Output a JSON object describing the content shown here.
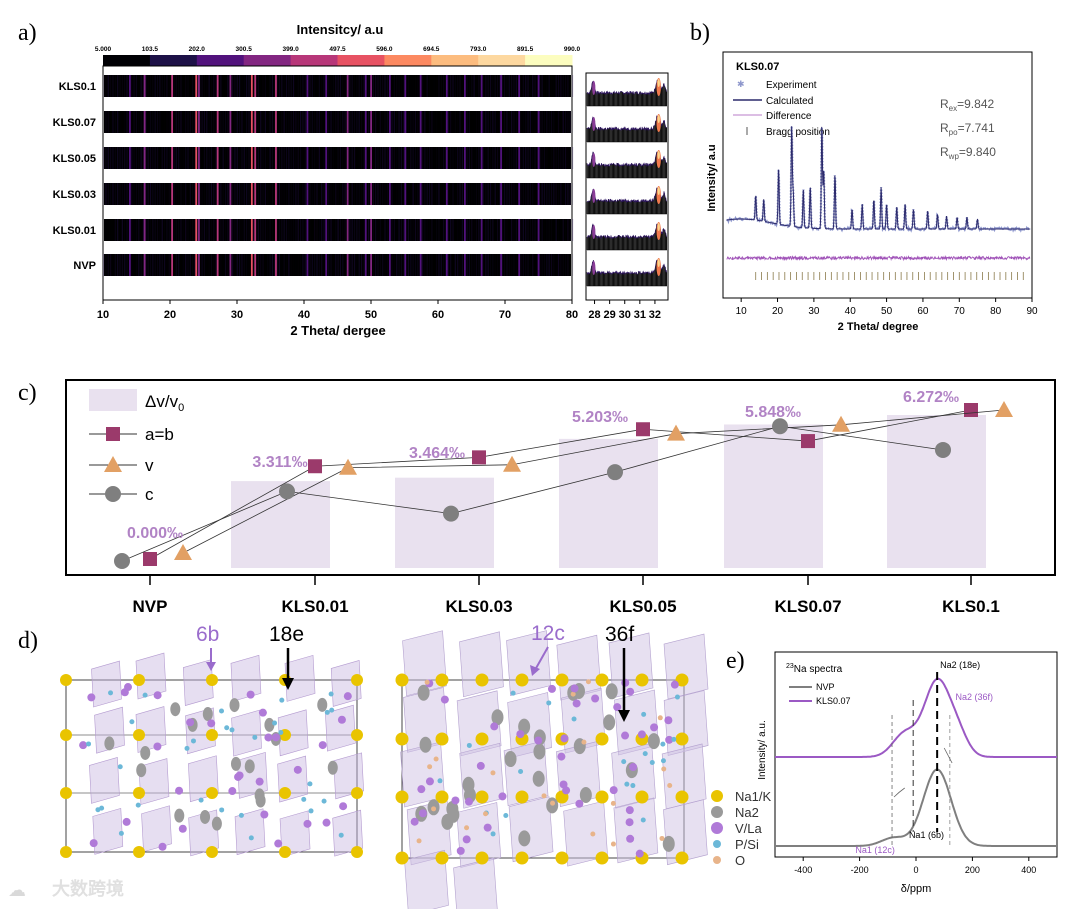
{
  "panel_labels": {
    "a": "a)",
    "b": "b)",
    "c": "c)",
    "d": "d)",
    "e": "e)"
  },
  "watermark": "大数跨境",
  "chart_data": [
    {
      "id": "a",
      "type": "heatmap",
      "colorbar_title": "Intensitcy/ a.u",
      "colorbar_ticks": [
        "5.000",
        "103.5",
        "202.0",
        "300.5",
        "399.0",
        "497.5",
        "596.0",
        "694.5",
        "793.0",
        "891.5",
        "990.0"
      ],
      "colorbar_colors": [
        "#000004",
        "#1d1147",
        "#51127c",
        "#822681",
        "#b73779",
        "#e75263",
        "#fc8961",
        "#fcbc7f",
        "#fdd8a0",
        "#fcfdbf"
      ],
      "rows": [
        "KLS0.1",
        "KLS0.07",
        "KLS0.05",
        "KLS0.03",
        "KLS0.01",
        "NVP"
      ],
      "xlabel": "2 Theta/ dergee",
      "xlim": [
        10,
        80
      ],
      "xticks": [
        "10",
        "20",
        "30",
        "40",
        "50",
        "60",
        "70",
        "80"
      ],
      "peak_positions": [
        14.0,
        16.2,
        20.3,
        23.9,
        24.3,
        27.1,
        29.0,
        32.2,
        32.7,
        35.8,
        40.5,
        43.3,
        46.5,
        49.2,
        50.0,
        52.8,
        55.1,
        57.4,
        61.3,
        64.0,
        66.5,
        69.4,
        72.1,
        75.0
      ],
      "peak_intensity": [
        0.35,
        0.45,
        0.85,
        0.9,
        0.5,
        0.55,
        0.5,
        1.0,
        0.8,
        0.55,
        0.35,
        0.35,
        0.45,
        0.3,
        0.4,
        0.3,
        0.35,
        0.3,
        0.3,
        0.3,
        0.25,
        0.25,
        0.25,
        0.2
      ],
      "zoom_xticks": [
        "28",
        "29",
        "30",
        "31",
        "32"
      ],
      "zoom_xlim": [
        27.5,
        32.8
      ]
    },
    {
      "id": "b",
      "type": "line",
      "title": "KLS0.07",
      "legend": [
        "Experiment",
        "Calculated",
        "Difference",
        "Bragg position"
      ],
      "r_labels": [
        {
          "base": "R",
          "sub": "ex",
          "value": "=9.842"
        },
        {
          "base": "R",
          "sub": "po",
          "value": "=7.741"
        },
        {
          "base": "R",
          "sub": "wp",
          "value": "=9.840"
        }
      ],
      "xlabel": "2 Theta/ degree",
      "ylabel": "Intensity/ a.u",
      "xlim": [
        5,
        90
      ],
      "xticks": [
        "10",
        "20",
        "30",
        "40",
        "50",
        "60",
        "70",
        "80",
        "90"
      ],
      "peaks": [
        [
          14.0,
          0.25
        ],
        [
          16.2,
          0.22
        ],
        [
          20.3,
          0.55
        ],
        [
          23.9,
          1.0
        ],
        [
          24.3,
          0.35
        ],
        [
          27.1,
          0.38
        ],
        [
          29.0,
          0.42
        ],
        [
          32.2,
          1.05
        ],
        [
          32.7,
          0.6
        ],
        [
          35.8,
          0.55
        ],
        [
          40.5,
          0.2
        ],
        [
          43.3,
          0.25
        ],
        [
          46.5,
          0.3
        ],
        [
          48.5,
          0.42
        ],
        [
          50.0,
          0.25
        ],
        [
          52.8,
          0.22
        ],
        [
          55.1,
          0.25
        ],
        [
          57.4,
          0.2
        ],
        [
          61.3,
          0.18
        ],
        [
          64.0,
          0.15
        ],
        [
          66.5,
          0.13
        ],
        [
          69.4,
          0.12
        ],
        [
          72.1,
          0.12
        ],
        [
          75.0,
          0.1
        ]
      ]
    },
    {
      "id": "c",
      "type": "line",
      "categories": [
        "NVP",
        "KLS0.01",
        "KLS0.03",
        "KLS0.05",
        "KLS0.07",
        "KLS0.1"
      ],
      "bar_labels": [
        "0.000‰",
        "3.311‰",
        "3.464‰",
        "5.203‰",
        "5.848‰",
        "6.272‰"
      ],
      "bar_values": [
        0.0,
        3.311,
        3.464,
        5.203,
        5.848,
        6.272
      ],
      "legend": [
        "Δv/v0",
        "a=b",
        "v",
        "c"
      ],
      "series": [
        {
          "name": "a=b",
          "values": [
            0.0,
            0.62,
            0.68,
            0.87,
            0.79,
            1.0
          ]
        },
        {
          "name": "v",
          "values": [
            0.05,
            0.61,
            0.63,
            0.84,
            0.9,
            1.0
          ]
        },
        {
          "name": "c",
          "values": [
            0.0,
            0.45,
            0.3,
            0.58,
            0.89,
            0.73
          ]
        }
      ],
      "colors": {
        "a=b": "#9b3a6b",
        "v": "#e2a064",
        "c": "#7f7f7f",
        "bars": "#e9e1ef",
        "bar_text": "#b183c5"
      }
    },
    {
      "id": "d",
      "type": "diagram",
      "left_labels": {
        "purple": "6b",
        "black": "18e"
      },
      "right_labels": {
        "purple": "12c",
        "black": "36f"
      },
      "legend": [
        "Na1/K",
        "Na2",
        "V/La",
        "P/Si",
        "O"
      ],
      "legend_colors": [
        "#e9c400",
        "#9a9a9a",
        "#b07ad8",
        "#6cb8d8",
        "#e8b48a"
      ]
    },
    {
      "id": "e",
      "type": "line",
      "title_super": "23",
      "title": "Na spectra",
      "legend": [
        "NVP",
        "KLS0.07"
      ],
      "xlabel": "δ/ppm",
      "ylabel": "Intensity/ a.u.",
      "xlim": [
        -500,
        500
      ],
      "xticks": [
        "-400",
        "-200",
        "0",
        "200",
        "400"
      ],
      "annotations": [
        "Na2 (18e)",
        "Na2 (36f)",
        "Na1 (6b)",
        "Na1 (12c)"
      ],
      "colors": {
        "NVP": "#7f7f7f",
        "KLS0.07": "#9b59c4"
      }
    }
  ]
}
